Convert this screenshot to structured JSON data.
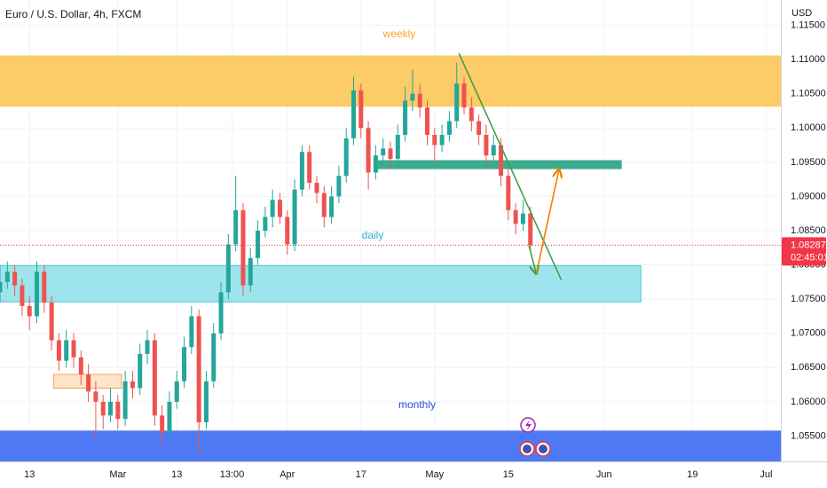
{
  "chart_data": {
    "type": "candlestick",
    "title": "Euro / U.S. Dollar, 4h, FXCM",
    "currency": "USD",
    "up_color": "#26a69a",
    "down_color": "#ef5350",
    "grid": true,
    "xlim": [
      -4,
      102
    ],
    "ylim": [
      1.0513,
      1.1187
    ],
    "xticks": [
      {
        "value": 0,
        "label": "13"
      },
      {
        "value": 12,
        "label": "Mar"
      },
      {
        "value": 20,
        "label": "13"
      },
      {
        "value": 27.5,
        "label": "13:00"
      },
      {
        "value": 35,
        "label": "Apr"
      },
      {
        "value": 45,
        "label": "17"
      },
      {
        "value": 55,
        "label": "May"
      },
      {
        "value": 65,
        "label": "15"
      },
      {
        "value": 78,
        "label": "Jun"
      },
      {
        "value": 90,
        "label": "19"
      },
      {
        "value": 100,
        "label": "Jul"
      }
    ],
    "yticks": [
      {
        "value": 1.055,
        "label": "1.05500"
      },
      {
        "value": 1.06,
        "label": "1.06000"
      },
      {
        "value": 1.065,
        "label": "1.06500"
      },
      {
        "value": 1.07,
        "label": "1.07000"
      },
      {
        "value": 1.075,
        "label": "1.07500"
      },
      {
        "value": 1.08,
        "label": "1.08000"
      },
      {
        "value": 1.085,
        "label": "1.08500"
      },
      {
        "value": 1.09,
        "label": "1.09000"
      },
      {
        "value": 1.095,
        "label": "1.09500"
      },
      {
        "value": 1.1,
        "label": "1.10000"
      },
      {
        "value": 1.105,
        "label": "1.10500"
      },
      {
        "value": 1.11,
        "label": "1.11000"
      },
      {
        "value": 1.115,
        "label": "1.11500"
      }
    ],
    "x": [
      -4,
      -3,
      -2,
      -1,
      0,
      1,
      2,
      3,
      4,
      5,
      6,
      7,
      8,
      9,
      10,
      11,
      12,
      13,
      14,
      15,
      16,
      17,
      18,
      19,
      20,
      21,
      22,
      23,
      24,
      25,
      26,
      27,
      28,
      29,
      30,
      31,
      32,
      33,
      34,
      35,
      36,
      37,
      38,
      39,
      40,
      41,
      42,
      43,
      44,
      45,
      46,
      47,
      48,
      49,
      50,
      51,
      52,
      53,
      54,
      55,
      56,
      57,
      58,
      59,
      60,
      61,
      62,
      63,
      64,
      65,
      66,
      67,
      68
    ],
    "ohlc": [
      [
        1.076,
        1.08,
        1.0745,
        1.0775
      ],
      [
        1.0775,
        1.0805,
        1.0765,
        1.079
      ],
      [
        1.079,
        1.08,
        1.0755,
        1.077
      ],
      [
        1.077,
        1.078,
        1.0725,
        1.074
      ],
      [
        1.074,
        1.0755,
        1.0705,
        1.0725
      ],
      [
        1.0725,
        1.0805,
        1.0715,
        1.079
      ],
      [
        1.079,
        1.08,
        1.073,
        1.0745
      ],
      [
        1.0745,
        1.0755,
        1.0675,
        1.069
      ],
      [
        1.069,
        1.07,
        1.0645,
        1.066
      ],
      [
        1.066,
        1.0705,
        1.065,
        1.069
      ],
      [
        1.069,
        1.07,
        1.065,
        1.0665
      ],
      [
        1.0665,
        1.0675,
        1.0625,
        1.064
      ],
      [
        1.064,
        1.0655,
        1.06,
        1.0615
      ],
      [
        1.0615,
        1.063,
        1.0545,
        1.06
      ],
      [
        1.06,
        1.061,
        1.056,
        1.058
      ],
      [
        1.058,
        1.062,
        1.057,
        1.06
      ],
      [
        1.06,
        1.061,
        1.056,
        1.0575
      ],
      [
        1.0575,
        1.0645,
        1.0565,
        1.063
      ],
      [
        1.063,
        1.0645,
        1.0605,
        1.062
      ],
      [
        1.062,
        1.0685,
        1.061,
        1.067
      ],
      [
        1.067,
        1.0705,
        1.0655,
        1.069
      ],
      [
        1.069,
        1.07,
        1.0565,
        1.058
      ],
      [
        1.058,
        1.0595,
        1.0535,
        1.0555
      ],
      [
        1.0555,
        1.0615,
        1.0545,
        1.06
      ],
      [
        1.06,
        1.0645,
        1.059,
        1.063
      ],
      [
        1.063,
        1.0695,
        1.062,
        1.068
      ],
      [
        1.068,
        1.074,
        1.067,
        1.0725
      ],
      [
        1.0725,
        1.0735,
        1.0525,
        1.057
      ],
      [
        1.057,
        1.0645,
        1.056,
        1.063
      ],
      [
        1.063,
        1.0715,
        1.062,
        1.07
      ],
      [
        1.07,
        1.0775,
        1.069,
        1.076
      ],
      [
        1.076,
        1.0845,
        1.075,
        1.083
      ],
      [
        1.083,
        1.093,
        1.082,
        1.088
      ],
      [
        1.088,
        1.089,
        1.0755,
        1.077
      ],
      [
        1.077,
        1.0825,
        1.076,
        1.081
      ],
      [
        1.081,
        1.0865,
        1.08,
        1.085
      ],
      [
        1.085,
        1.0885,
        1.084,
        1.087
      ],
      [
        1.087,
        1.091,
        1.0855,
        1.0895
      ],
      [
        1.0895,
        1.0905,
        1.086,
        1.087
      ],
      [
        1.087,
        1.088,
        1.0815,
        1.083
      ],
      [
        1.083,
        1.0925,
        1.082,
        1.091
      ],
      [
        1.091,
        1.0975,
        1.09,
        1.0965
      ],
      [
        1.0965,
        1.0975,
        1.091,
        1.092
      ],
      [
        1.092,
        1.093,
        1.089,
        1.0905
      ],
      [
        1.0905,
        1.0915,
        1.0855,
        1.087
      ],
      [
        1.087,
        1.0915,
        1.086,
        1.09
      ],
      [
        1.09,
        1.0945,
        1.089,
        1.093
      ],
      [
        1.093,
        1.1,
        1.092,
        1.0985
      ],
      [
        1.0985,
        1.1075,
        1.0975,
        1.1055
      ],
      [
        1.1055,
        1.1065,
        1.0985,
        1.1
      ],
      [
        1.1,
        1.101,
        1.091,
        1.0935
      ],
      [
        1.0935,
        1.0975,
        1.0925,
        1.096
      ],
      [
        1.096,
        1.0985,
        1.0945,
        1.097
      ],
      [
        1.097,
        1.098,
        1.094,
        1.0955
      ],
      [
        1.0955,
        1.1005,
        1.0945,
        1.099
      ],
      [
        1.099,
        1.106,
        1.098,
        1.104
      ],
      [
        1.104,
        1.1085,
        1.1025,
        1.105
      ],
      [
        1.105,
        1.1065,
        1.1015,
        1.103
      ],
      [
        1.103,
        1.104,
        1.0975,
        1.099
      ],
      [
        1.099,
        1.1,
        1.095,
        1.0975
      ],
      [
        1.0975,
        1.1005,
        1.0965,
        1.099
      ],
      [
        1.099,
        1.1025,
        1.098,
        1.101
      ],
      [
        1.101,
        1.1095,
        1.1,
        1.1065
      ],
      [
        1.1065,
        1.1075,
        1.102,
        1.103
      ],
      [
        1.103,
        1.1045,
        1.0995,
        1.101
      ],
      [
        1.101,
        1.102,
        1.0975,
        1.099
      ],
      [
        1.099,
        1.1005,
        1.0945,
        1.096
      ],
      [
        1.096,
        1.099,
        1.095,
        1.0975
      ],
      [
        1.0975,
        1.0985,
        1.0915,
        1.093
      ],
      [
        1.093,
        1.094,
        1.0865,
        1.088
      ],
      [
        1.088,
        1.089,
        1.0845,
        1.086
      ],
      [
        1.086,
        1.0895,
        1.085,
        1.0875
      ],
      [
        1.0875,
        1.0885,
        1.082,
        1.08287
      ]
    ],
    "zones": [
      {
        "label": "weekly",
        "color": "#fbc85a",
        "label_color": "#f7a521",
        "y": [
          1.1031,
          1.1106
        ]
      },
      {
        "label": "daily",
        "color": "#96e2ea",
        "border": "#4fc8d6",
        "label_color": "#26b5c8",
        "x": [
          -4,
          83
        ],
        "y": [
          1.0746,
          1.0799
        ]
      },
      {
        "color": "#2ba383",
        "x": [
          47.3,
          80.4
        ],
        "y": [
          1.094,
          1.0953
        ]
      },
      {
        "color": "#fde3c6",
        "border": "#f5a04a",
        "x": [
          3.3,
          12.5
        ],
        "y": [
          1.062,
          1.064
        ]
      },
      {
        "label": "monthly",
        "color": "#3f6ef4",
        "label_color": "#2350d8",
        "y": [
          1.0513,
          1.0558
        ]
      }
    ],
    "lines": [
      {
        "color": "#43a047",
        "x": [
          58.3,
          72.2
        ],
        "y": [
          1.1109,
          1.0778
        ]
      },
      {
        "color": "#43a047",
        "arrow": true,
        "x": [
          67.8,
          68.8
        ],
        "y": [
          1.0828,
          1.0787
        ]
      },
      {
        "color": "#f57c00",
        "arrow": true,
        "x": [
          68.8,
          71.9
        ],
        "y": [
          1.0787,
          1.094
        ]
      }
    ],
    "last_price": {
      "value": 1.08287,
      "countdown": "02:45:01",
      "color": "#f23645"
    }
  }
}
